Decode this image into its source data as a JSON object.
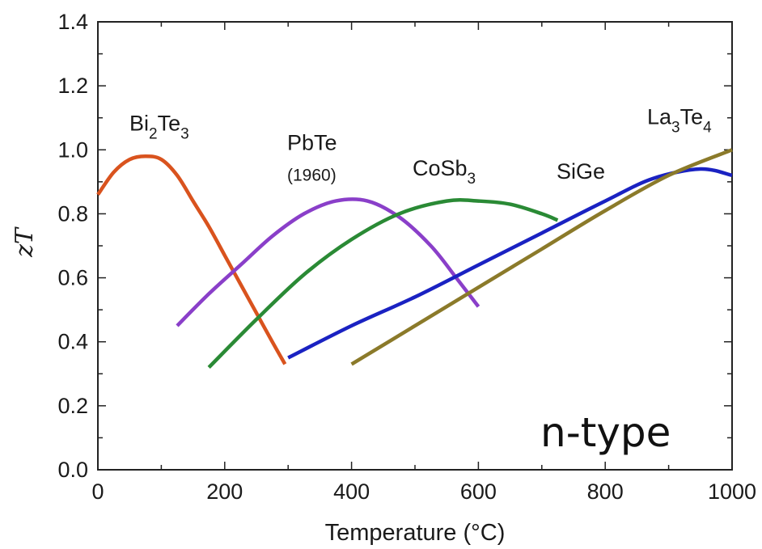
{
  "chart_data": {
    "type": "line",
    "xlabel": "Temperature (°C)",
    "ylabel": "zT",
    "xlim": [
      0,
      1000
    ],
    "ylim": [
      0,
      1.4
    ],
    "x_ticks": [
      "0",
      "200",
      "400",
      "600",
      "800",
      "1000"
    ],
    "y_ticks": [
      "0.0",
      "0.2",
      "0.4",
      "0.6",
      "0.8",
      "1.0",
      "1.2",
      "1.4"
    ],
    "grid": false,
    "legend": "none",
    "annotation": "n-type",
    "series": [
      {
        "name": "Bi2Te3",
        "label_parts": [
          "Bi",
          "2",
          "Te",
          "3"
        ],
        "color": "#d9531e",
        "points": [
          [
            0,
            0.86
          ],
          [
            25,
            0.93
          ],
          [
            50,
            0.97
          ],
          [
            75,
            0.98
          ],
          [
            100,
            0.97
          ],
          [
            125,
            0.92
          ],
          [
            150,
            0.84
          ],
          [
            175,
            0.76
          ],
          [
            200,
            0.67
          ],
          [
            225,
            0.58
          ],
          [
            250,
            0.49
          ],
          [
            275,
            0.4
          ],
          [
            295,
            0.33
          ]
        ]
      },
      {
        "name": "PbTe",
        "note": "(1960)",
        "label_parts": [
          "PbTe"
        ],
        "color": "#8a3fc9",
        "points": [
          [
            125,
            0.45
          ],
          [
            175,
            0.55
          ],
          [
            225,
            0.64
          ],
          [
            275,
            0.73
          ],
          [
            325,
            0.8
          ],
          [
            375,
            0.84
          ],
          [
            425,
            0.84
          ],
          [
            475,
            0.79
          ],
          [
            525,
            0.7
          ],
          [
            565,
            0.6
          ],
          [
            600,
            0.51
          ]
        ]
      },
      {
        "name": "CoSb3",
        "label_parts": [
          "CoSb",
          "3"
        ],
        "color": "#2a8a35",
        "points": [
          [
            175,
            0.32
          ],
          [
            250,
            0.47
          ],
          [
            325,
            0.61
          ],
          [
            400,
            0.72
          ],
          [
            475,
            0.8
          ],
          [
            550,
            0.84
          ],
          [
            600,
            0.84
          ],
          [
            650,
            0.83
          ],
          [
            700,
            0.8
          ],
          [
            725,
            0.78
          ]
        ]
      },
      {
        "name": "SiGe",
        "label_parts": [
          "SiGe"
        ],
        "color": "#1a22c2",
        "points": [
          [
            300,
            0.35
          ],
          [
            400,
            0.45
          ],
          [
            500,
            0.54
          ],
          [
            600,
            0.64
          ],
          [
            700,
            0.74
          ],
          [
            800,
            0.84
          ],
          [
            875,
            0.91
          ],
          [
            950,
            0.94
          ],
          [
            1000,
            0.92
          ]
        ]
      },
      {
        "name": "La3Te4",
        "label_parts": [
          "La",
          "3",
          "Te",
          "4"
        ],
        "color": "#8b7a2a",
        "points": [
          [
            400,
            0.33
          ],
          [
            500,
            0.45
          ],
          [
            600,
            0.57
          ],
          [
            700,
            0.69
          ],
          [
            800,
            0.81
          ],
          [
            900,
            0.92
          ],
          [
            1000,
            1.0
          ]
        ]
      }
    ]
  }
}
